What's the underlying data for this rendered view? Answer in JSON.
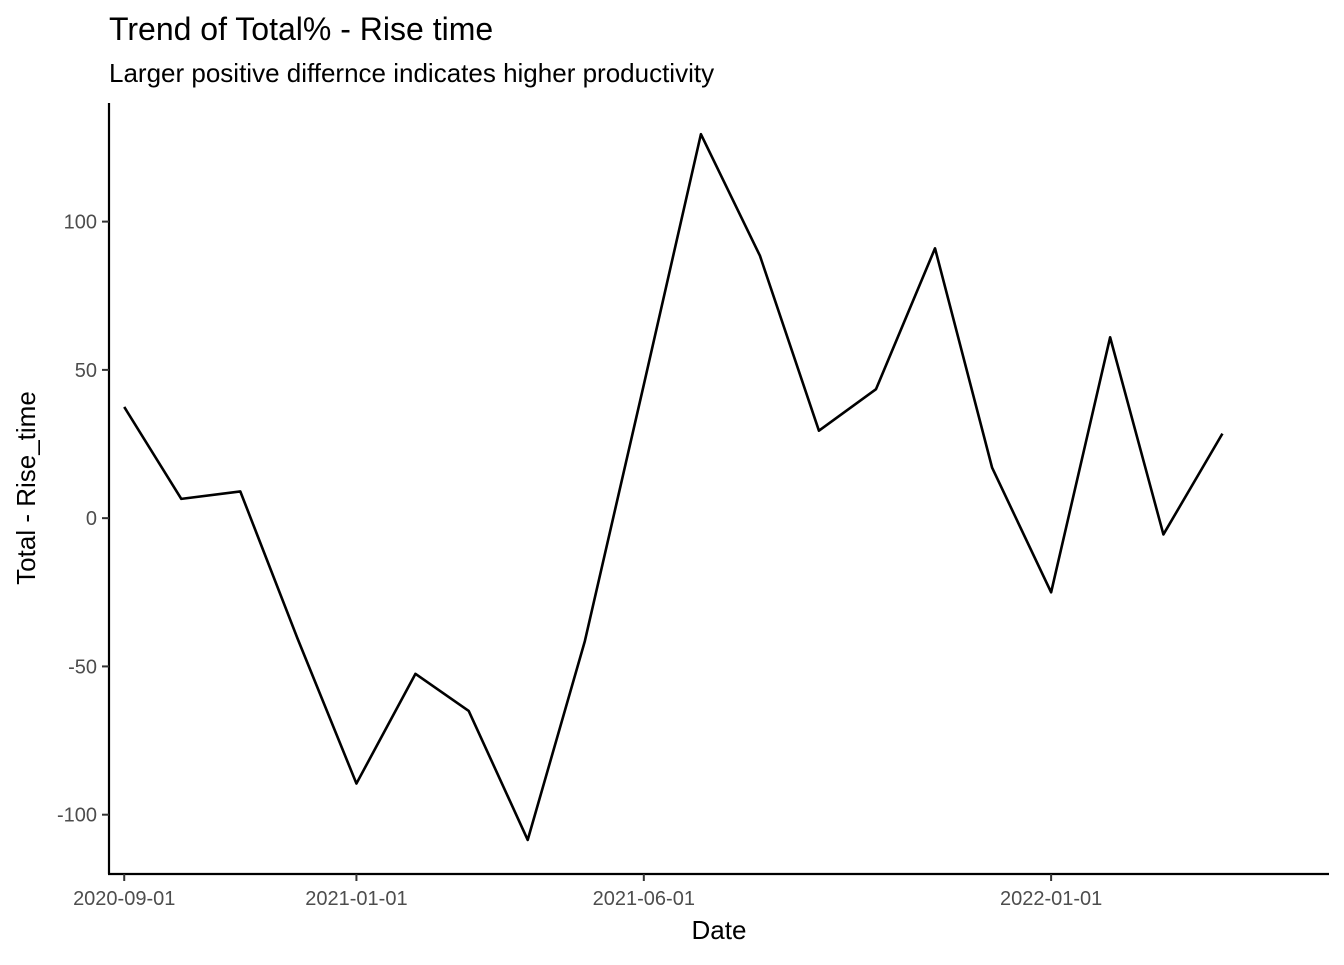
{
  "chart_data": {
    "type": "line",
    "title": "Trend of Total% - Rise time",
    "subtitle": "Larger positive differnce indicates higher productivity",
    "xlabel": "Date",
    "ylabel": "Total - Rise_time",
    "x_type": "date",
    "xlim": [
      "2020-08-24",
      "2022-05-27"
    ],
    "ylim": [
      -120,
      140
    ],
    "x_ticks": [
      "2020-09-01",
      "2021-01-01",
      "2021-06-01",
      "2022-01-01"
    ],
    "y_ticks": [
      -100,
      -50,
      0,
      50,
      100
    ],
    "y_tick_labels": [
      "-100",
      "-50",
      "0",
      "50",
      "100"
    ],
    "grid": false,
    "legend": "none",
    "line_color": "#000000",
    "series": [
      {
        "x": [
          "2020-09-01",
          "2020-10-01",
          "2020-11-01",
          "2020-12-01",
          "2021-01-01",
          "2021-02-01",
          "2021-03-01",
          "2021-04-01",
          "2021-05-01",
          "2021-06-01",
          "2021-07-01",
          "2021-08-01",
          "2021-09-01",
          "2021-10-01",
          "2021-11-01",
          "2021-12-01",
          "2022-01-01",
          "2022-02-01",
          "2022-03-01",
          "2022-04-01"
        ],
        "values": [
          37.5,
          6.5,
          9,
          -40.5,
          -89.5,
          -52.5,
          -65,
          -108.5,
          -41.5,
          45,
          129.5,
          88.5,
          29.5,
          43.5,
          91,
          17,
          -25,
          61,
          -5.5,
          28.5
        ]
      }
    ]
  }
}
